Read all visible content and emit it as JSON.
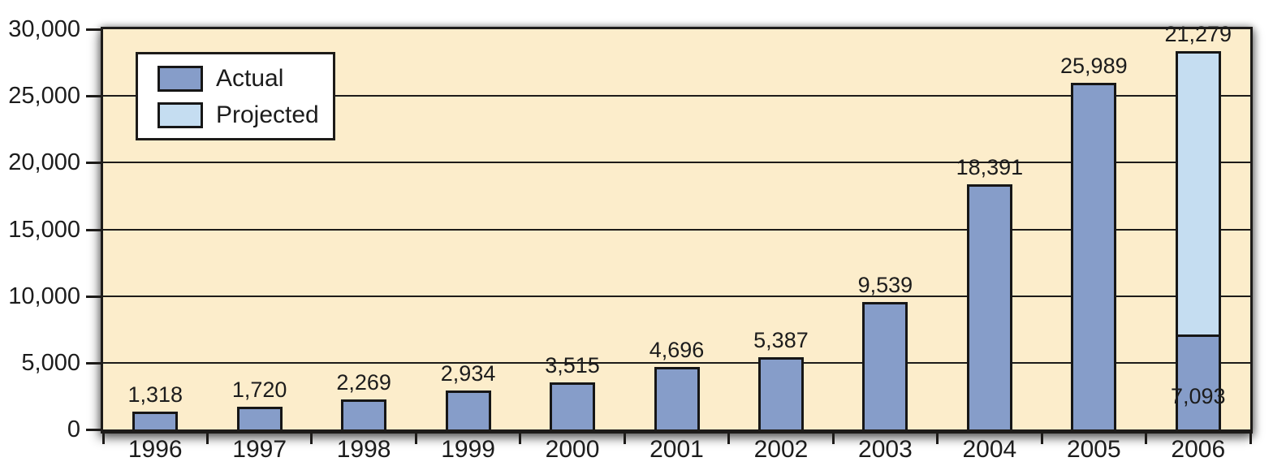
{
  "colors": {
    "page_background": "#ffffff",
    "plot_background": "#FCEDCB",
    "line_color": "#1d1b19",
    "actual_bar": "#869DC9",
    "projected_bar": "#C5DDF1",
    "text": "#1c1c1c"
  },
  "chart_data": {
    "type": "bar",
    "stacked": true,
    "title": "",
    "xlabel": "",
    "ylabel": "",
    "categories": [
      "1996",
      "1997",
      "1998",
      "1999",
      "2000",
      "2001",
      "2002",
      "2003",
      "2004",
      "2005",
      "2006"
    ],
    "series": [
      {
        "name": "Actual",
        "color": "#869DC9",
        "values": [
          1318,
          1720,
          2269,
          2934,
          3515,
          4696,
          5387,
          9539,
          18391,
          25989,
          7093
        ]
      },
      {
        "name": "Projected",
        "color": "#C5DDF1",
        "values": [
          0,
          0,
          0,
          0,
          0,
          0,
          0,
          0,
          0,
          0,
          21279
        ]
      }
    ],
    "bar_labels_above": [
      "1,318",
      "1,720",
      "2,269",
      "2,934",
      "3,515",
      "4,696",
      "5,387",
      "9,539",
      "18,391",
      "25,989",
      "21,279"
    ],
    "bar_label_inside_2006": "7,093",
    "yticks": [
      {
        "value": 0,
        "label": "0"
      },
      {
        "value": 5000,
        "label": "5,000"
      },
      {
        "value": 10000,
        "label": "10,000"
      },
      {
        "value": 15000,
        "label": "15,000"
      },
      {
        "value": 20000,
        "label": "20,000"
      },
      {
        "value": 25000,
        "label": "25,000"
      },
      {
        "value": 30000,
        "label": "30,000"
      }
    ],
    "ylim": [
      0,
      30000
    ],
    "grid": "horizontal",
    "legend_position": "top-left"
  }
}
